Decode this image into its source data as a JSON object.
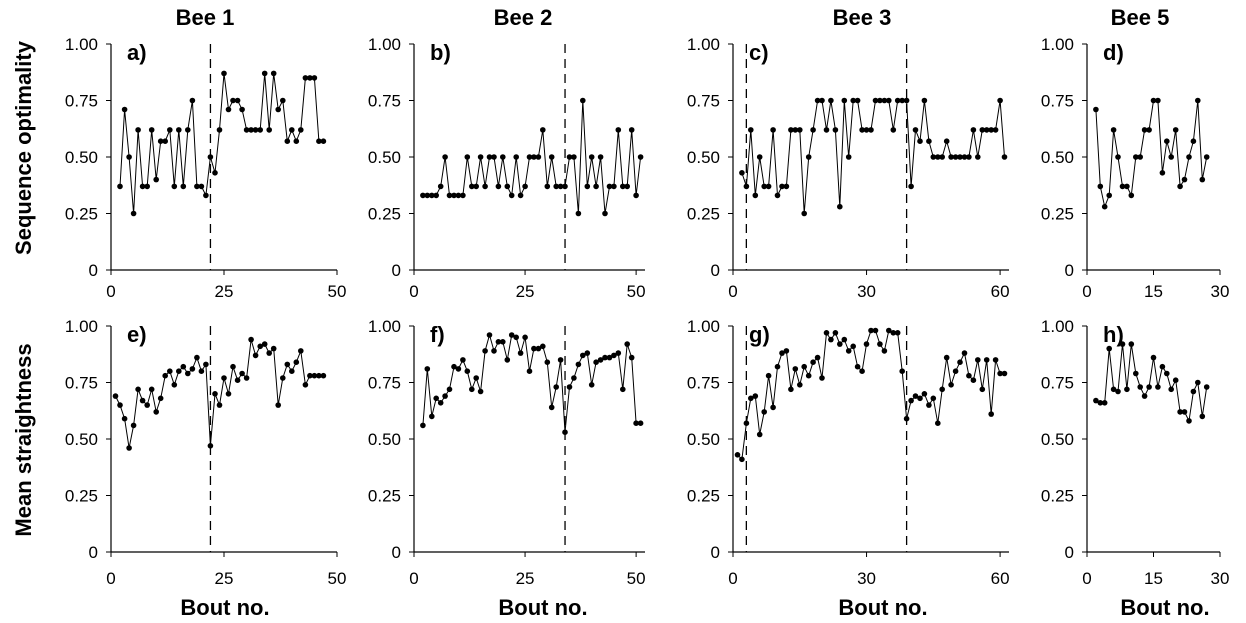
{
  "figure": {
    "column_titles": [
      "Bee 1",
      "Bee 2",
      "Bee 3",
      "Bee 5"
    ],
    "row_ylabels": [
      "Sequence optimality",
      "Mean straightness"
    ],
    "xlabel": "Bout no."
  },
  "chart_data": [
    {
      "type": "line",
      "panel_label": "a)",
      "xlim": [
        0,
        50
      ],
      "xticks": [
        0,
        25,
        50
      ],
      "ylim": [
        0,
        1
      ],
      "yticks": [
        "0",
        "0.25",
        "0.50",
        "0.75",
        "1.00"
      ],
      "vlines": [
        22
      ],
      "x": [
        2,
        3,
        4,
        5,
        6,
        7,
        8,
        9,
        10,
        11,
        12,
        13,
        14,
        15,
        16,
        17,
        18,
        19,
        20,
        21,
        22,
        23,
        24,
        25,
        26,
        27,
        28,
        29,
        30,
        31,
        32,
        33,
        34,
        35,
        36,
        37,
        38,
        39,
        40,
        41,
        42,
        43,
        44,
        45,
        46,
        47
      ],
      "y": [
        0.37,
        0.71,
        0.5,
        0.25,
        0.62,
        0.37,
        0.37,
        0.62,
        0.4,
        0.57,
        0.57,
        0.62,
        0.37,
        0.62,
        0.37,
        0.62,
        0.75,
        0.37,
        0.37,
        0.33,
        0.5,
        0.43,
        0.62,
        0.87,
        0.71,
        0.75,
        0.75,
        0.71,
        0.62,
        0.62,
        0.62,
        0.62,
        0.87,
        0.62,
        0.87,
        0.71,
        0.75,
        0.57,
        0.62,
        0.57,
        0.62,
        0.85,
        0.85,
        0.85,
        0.57,
        0.57
      ]
    },
    {
      "type": "line",
      "panel_label": "b)",
      "xlim": [
        0,
        52
      ],
      "xticks": [
        0,
        25,
        50
      ],
      "ylim": [
        0,
        1
      ],
      "yticks": [
        "0",
        "0.25",
        "0.50",
        "0.75",
        "1.00"
      ],
      "vlines": [
        34
      ],
      "x": [
        2,
        3,
        4,
        5,
        6,
        7,
        8,
        9,
        10,
        11,
        12,
        13,
        14,
        15,
        16,
        17,
        18,
        19,
        20,
        21,
        22,
        23,
        24,
        25,
        26,
        27,
        28,
        29,
        30,
        31,
        32,
        33,
        34,
        35,
        36,
        37,
        38,
        39,
        40,
        41,
        42,
        43,
        44,
        45,
        46,
        47,
        48,
        49,
        50,
        51
      ],
      "y": [
        0.33,
        0.33,
        0.33,
        0.33,
        0.37,
        0.5,
        0.33,
        0.33,
        0.33,
        0.33,
        0.5,
        0.37,
        0.37,
        0.5,
        0.37,
        0.5,
        0.5,
        0.37,
        0.5,
        0.37,
        0.33,
        0.5,
        0.33,
        0.37,
        0.5,
        0.5,
        0.5,
        0.62,
        0.37,
        0.5,
        0.37,
        0.37,
        0.37,
        0.5,
        0.5,
        0.25,
        0.75,
        0.37,
        0.5,
        0.37,
        0.5,
        0.25,
        0.37,
        0.37,
        0.62,
        0.37,
        0.37,
        0.62,
        0.33,
        0.5
      ]
    },
    {
      "type": "line",
      "panel_label": "c)",
      "xlim": [
        0,
        62
      ],
      "xticks": [
        0,
        30,
        60
      ],
      "ylim": [
        0,
        1
      ],
      "yticks": [
        "0",
        "0.25",
        "0.50",
        "0.75",
        "1.00"
      ],
      "vlines": [
        3,
        39
      ],
      "x": [
        2,
        3,
        4,
        5,
        6,
        7,
        8,
        9,
        10,
        11,
        12,
        13,
        14,
        15,
        16,
        17,
        18,
        19,
        20,
        21,
        22,
        23,
        24,
        25,
        26,
        27,
        28,
        29,
        30,
        31,
        32,
        33,
        34,
        35,
        36,
        37,
        38,
        39,
        40,
        41,
        42,
        43,
        44,
        45,
        46,
        47,
        48,
        49,
        50,
        51,
        52,
        53,
        54,
        55,
        56,
        57,
        58,
        59,
        60,
        61
      ],
      "y": [
        0.43,
        0.37,
        0.62,
        0.33,
        0.5,
        0.37,
        0.37,
        0.62,
        0.33,
        0.37,
        0.37,
        0.62,
        0.62,
        0.62,
        0.25,
        0.5,
        0.62,
        0.75,
        0.75,
        0.62,
        0.75,
        0.62,
        0.28,
        0.75,
        0.5,
        0.75,
        0.75,
        0.62,
        0.62,
        0.62,
        0.75,
        0.75,
        0.75,
        0.75,
        0.62,
        0.75,
        0.75,
        0.75,
        0.37,
        0.62,
        0.57,
        0.75,
        0.57,
        0.5,
        0.5,
        0.5,
        0.57,
        0.5,
        0.5,
        0.5,
        0.5,
        0.5,
        0.62,
        0.5,
        0.62,
        0.62,
        0.62,
        0.62,
        0.75,
        0.5
      ]
    },
    {
      "type": "line",
      "panel_label": "d)",
      "xlim": [
        0,
        30
      ],
      "xticks": [
        0,
        15,
        30
      ],
      "ylim": [
        0,
        1
      ],
      "yticks": [
        "0",
        "0.25",
        "0.50",
        "0.75",
        "1.00"
      ],
      "vlines": [],
      "x": [
        2,
        3,
        4,
        5,
        6,
        7,
        8,
        9,
        10,
        11,
        12,
        13,
        14,
        15,
        16,
        17,
        18,
        19,
        20,
        21,
        22,
        23,
        24,
        25,
        26,
        27
      ],
      "y": [
        0.71,
        0.37,
        0.28,
        0.33,
        0.62,
        0.5,
        0.37,
        0.37,
        0.33,
        0.5,
        0.5,
        0.62,
        0.62,
        0.75,
        0.75,
        0.43,
        0.57,
        0.5,
        0.62,
        0.37,
        0.4,
        0.5,
        0.57,
        0.75,
        0.4,
        0.5
      ]
    },
    {
      "type": "line",
      "panel_label": "e)",
      "xlim": [
        0,
        50
      ],
      "xticks": [
        0,
        25,
        50
      ],
      "ylim": [
        0,
        1
      ],
      "yticks": [
        "0",
        "0.25",
        "0.50",
        "0.75",
        "1.00"
      ],
      "vlines": [
        22
      ],
      "x": [
        1,
        2,
        3,
        4,
        5,
        6,
        7,
        8,
        9,
        10,
        11,
        12,
        13,
        14,
        15,
        16,
        17,
        18,
        19,
        20,
        21,
        22,
        23,
        24,
        25,
        26,
        27,
        28,
        29,
        30,
        31,
        32,
        33,
        34,
        35,
        36,
        37,
        38,
        39,
        40,
        41,
        42,
        43,
        44,
        45,
        46,
        47
      ],
      "y": [
        0.69,
        0.65,
        0.59,
        0.46,
        0.56,
        0.72,
        0.67,
        0.65,
        0.72,
        0.62,
        0.68,
        0.78,
        0.8,
        0.74,
        0.8,
        0.82,
        0.79,
        0.81,
        0.86,
        0.8,
        0.83,
        0.47,
        0.7,
        0.65,
        0.77,
        0.7,
        0.82,
        0.76,
        0.79,
        0.77,
        0.94,
        0.87,
        0.91,
        0.92,
        0.88,
        0.9,
        0.65,
        0.77,
        0.83,
        0.8,
        0.84,
        0.89,
        0.74,
        0.78,
        0.78,
        0.78,
        0.78
      ]
    },
    {
      "type": "line",
      "panel_label": "f)",
      "xlim": [
        0,
        52
      ],
      "xticks": [
        0,
        25,
        50
      ],
      "ylim": [
        0,
        1
      ],
      "yticks": [
        "0",
        "0.25",
        "0.50",
        "0.75",
        "1.00"
      ],
      "vlines": [
        34
      ],
      "x": [
        2,
        3,
        4,
        5,
        6,
        7,
        8,
        9,
        10,
        11,
        12,
        13,
        14,
        15,
        16,
        17,
        18,
        19,
        20,
        21,
        22,
        23,
        24,
        25,
        26,
        27,
        28,
        29,
        30,
        31,
        32,
        33,
        34,
        35,
        36,
        37,
        38,
        39,
        40,
        41,
        42,
        43,
        44,
        45,
        46,
        47,
        48,
        49,
        50,
        51
      ],
      "y": [
        0.56,
        0.81,
        0.6,
        0.68,
        0.66,
        0.69,
        0.72,
        0.82,
        0.81,
        0.85,
        0.8,
        0.72,
        0.77,
        0.71,
        0.89,
        0.96,
        0.89,
        0.93,
        0.93,
        0.85,
        0.96,
        0.95,
        0.88,
        0.95,
        0.8,
        0.9,
        0.9,
        0.91,
        0.84,
        0.64,
        0.73,
        0.85,
        0.53,
        0.73,
        0.77,
        0.83,
        0.87,
        0.88,
        0.74,
        0.84,
        0.85,
        0.86,
        0.86,
        0.87,
        0.88,
        0.72,
        0.92,
        0.86,
        0.57,
        0.57
      ]
    },
    {
      "type": "line",
      "panel_label": "g)",
      "xlim": [
        0,
        62
      ],
      "xticks": [
        0,
        30,
        60
      ],
      "ylim": [
        0,
        1
      ],
      "yticks": [
        "0",
        "0.25",
        "0.50",
        "0.75",
        "1.00"
      ],
      "vlines": [
        3,
        39
      ],
      "x": [
        1,
        2,
        3,
        4,
        5,
        6,
        7,
        8,
        9,
        10,
        11,
        12,
        13,
        14,
        15,
        16,
        17,
        18,
        19,
        20,
        21,
        22,
        23,
        24,
        25,
        26,
        27,
        28,
        29,
        30,
        31,
        32,
        33,
        34,
        35,
        36,
        37,
        38,
        39,
        40,
        41,
        42,
        43,
        44,
        45,
        46,
        47,
        48,
        49,
        50,
        51,
        52,
        53,
        54,
        55,
        56,
        57,
        58,
        59,
        60,
        61
      ],
      "y": [
        0.43,
        0.41,
        0.57,
        0.68,
        0.69,
        0.52,
        0.62,
        0.78,
        0.64,
        0.82,
        0.88,
        0.89,
        0.72,
        0.81,
        0.74,
        0.82,
        0.78,
        0.84,
        0.86,
        0.77,
        0.97,
        0.94,
        0.97,
        0.92,
        0.94,
        0.89,
        0.91,
        0.82,
        0.8,
        0.92,
        0.98,
        0.98,
        0.92,
        0.89,
        0.98,
        0.97,
        0.97,
        0.8,
        0.59,
        0.67,
        0.69,
        0.68,
        0.7,
        0.65,
        0.68,
        0.57,
        0.72,
        0.86,
        0.74,
        0.8,
        0.84,
        0.88,
        0.78,
        0.76,
        0.85,
        0.72,
        0.85,
        0.61,
        0.85,
        0.79,
        0.79
      ]
    },
    {
      "type": "line",
      "panel_label": "h)",
      "xlim": [
        0,
        30
      ],
      "xticks": [
        0,
        15,
        30
      ],
      "ylim": [
        0,
        1
      ],
      "yticks": [
        "0",
        "0.25",
        "0.50",
        "0.75",
        "1.00"
      ],
      "vlines": [],
      "x": [
        2,
        3,
        4,
        5,
        6,
        7,
        8,
        9,
        10,
        11,
        12,
        13,
        14,
        15,
        16,
        17,
        18,
        19,
        20,
        21,
        22,
        23,
        24,
        25,
        26,
        27
      ],
      "y": [
        0.67,
        0.66,
        0.66,
        0.9,
        0.72,
        0.71,
        0.92,
        0.72,
        0.92,
        0.79,
        0.73,
        0.69,
        0.73,
        0.86,
        0.73,
        0.82,
        0.79,
        0.72,
        0.76,
        0.62,
        0.62,
        0.58,
        0.71,
        0.75,
        0.6,
        0.73
      ]
    }
  ]
}
